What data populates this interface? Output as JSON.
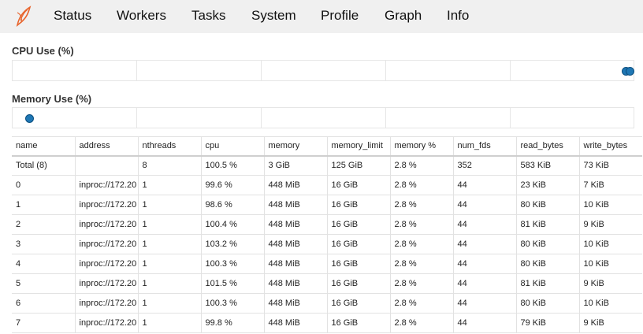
{
  "nav": [
    "Status",
    "Workers",
    "Tasks",
    "System",
    "Profile",
    "Graph",
    "Info"
  ],
  "cpu_title": "CPU Use (%)",
  "memory_title": "Memory Use (%)",
  "table": {
    "headers": [
      "name",
      "address",
      "nthreads",
      "cpu",
      "memory",
      "memory_limit",
      "memory %",
      "num_fds",
      "read_bytes",
      "write_bytes"
    ],
    "rows": [
      [
        "Total (8)",
        "",
        "8",
        "100.5 %",
        "3 GiB",
        "125 GiB",
        "2.8 %",
        "352",
        "583 KiB",
        "73 KiB"
      ],
      [
        "0",
        "inproc://172.20",
        "1",
        "99.6 %",
        "448 MiB",
        "16 GiB",
        "2.8 %",
        "44",
        "23 KiB",
        "7 KiB"
      ],
      [
        "1",
        "inproc://172.20",
        "1",
        "98.6 %",
        "448 MiB",
        "16 GiB",
        "2.8 %",
        "44",
        "80 KiB",
        "10 KiB"
      ],
      [
        "2",
        "inproc://172.20",
        "1",
        "100.4 %",
        "448 MiB",
        "16 GiB",
        "2.8 %",
        "44",
        "81 KiB",
        "9 KiB"
      ],
      [
        "3",
        "inproc://172.20",
        "1",
        "103.2 %",
        "448 MiB",
        "16 GiB",
        "2.8 %",
        "44",
        "80 KiB",
        "10 KiB"
      ],
      [
        "4",
        "inproc://172.20",
        "1",
        "100.3 %",
        "448 MiB",
        "16 GiB",
        "2.8 %",
        "44",
        "80 KiB",
        "10 KiB"
      ],
      [
        "5",
        "inproc://172.20",
        "1",
        "101.5 %",
        "448 MiB",
        "16 GiB",
        "2.8 %",
        "44",
        "81 KiB",
        "9 KiB"
      ],
      [
        "6",
        "inproc://172.20",
        "1",
        "100.3 %",
        "448 MiB",
        "16 GiB",
        "2.8 %",
        "44",
        "80 KiB",
        "10 KiB"
      ],
      [
        "7",
        "inproc://172.20",
        "1",
        "99.8 %",
        "448 MiB",
        "16 GiB",
        "2.8 %",
        "44",
        "79 KiB",
        "9 KiB"
      ]
    ]
  }
}
